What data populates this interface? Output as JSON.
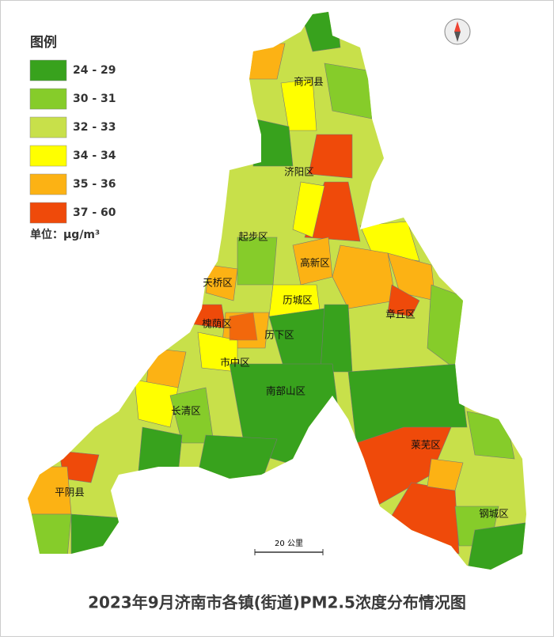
{
  "legend": {
    "title": "图例",
    "items": [
      {
        "label": "24 - 29",
        "color": "#38a21d"
      },
      {
        "label": "30 - 31",
        "color": "#86cc2a"
      },
      {
        "label": "32 - 33",
        "color": "#c8e04a"
      },
      {
        "label": "34 - 34",
        "color": "#ffff00"
      },
      {
        "label": "35 - 36",
        "color": "#fcb214"
      },
      {
        "label": "37 - 60",
        "color": "#ef4a0a"
      }
    ],
    "unit": "单位：μg/m³"
  },
  "districts": [
    "商河县",
    "济阳区",
    "起步区",
    "高新区",
    "天桥区",
    "历城区",
    "章丘区",
    "槐荫区",
    "历下区",
    "市中区",
    "南部山区",
    "长清区",
    "莱芜区",
    "平阴县",
    "钢城区"
  ],
  "scale_label": "20 公里",
  "title": "2023年9月济南市各镇(街道)PM2.5浓度分布情况图"
}
